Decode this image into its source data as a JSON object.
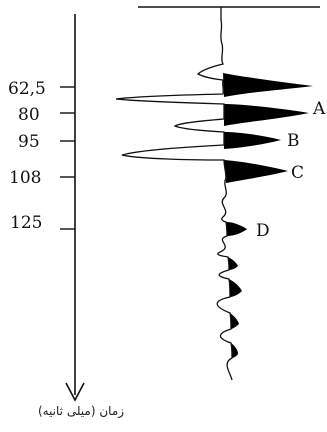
{
  "axis": {
    "caption": "زمان (میلی ثانیه)",
    "ticks": [
      {
        "label": "62,5",
        "time": 62.5
      },
      {
        "label": "80",
        "time": 80
      },
      {
        "label": "95",
        "time": 95
      },
      {
        "label": "108",
        "time": 108
      },
      {
        "label": "125",
        "time": 125
      }
    ]
  },
  "events": [
    {
      "label": "A",
      "time": 80
    },
    {
      "label": "B",
      "time": 95
    },
    {
      "label": "C",
      "time": 108
    },
    {
      "label": "D",
      "time": 125
    }
  ],
  "colors": {
    "ink": "#111111",
    "fill": "#000000"
  }
}
